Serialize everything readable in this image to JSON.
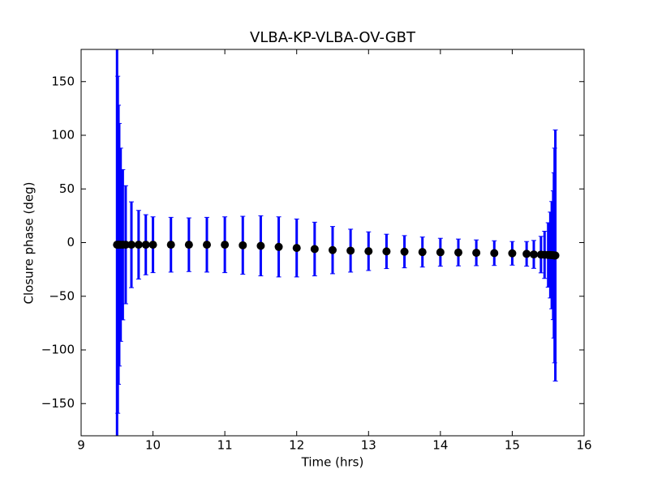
{
  "chart_data": {
    "type": "errorbar",
    "title": "VLBA-KP-VLBA-OV-GBT",
    "xlabel": "Time (hrs)",
    "ylabel": "Closure phase (deg)",
    "x": [
      9.5,
      9.51,
      9.52,
      9.53,
      9.55,
      9.58,
      9.62,
      9.7,
      9.8,
      9.9,
      10.0,
      10.25,
      10.5,
      10.75,
      11.0,
      11.25,
      11.5,
      11.75,
      12.0,
      12.25,
      12.5,
      12.75,
      13.0,
      13.25,
      13.5,
      13.75,
      14.0,
      14.25,
      14.5,
      14.75,
      15.0,
      15.2,
      15.3,
      15.4,
      15.45,
      15.5,
      15.53,
      15.55,
      15.57,
      15.58,
      15.59,
      15.6
    ],
    "values": [
      -2,
      -2,
      -2,
      -2,
      -2,
      -2,
      -2,
      -2,
      -2,
      -2,
      -2,
      -2,
      -2,
      -2,
      -2,
      -2.5,
      -3,
      -4,
      -5,
      -6,
      -7,
      -7.5,
      -8,
      -8.2,
      -8.5,
      -8.8,
      -9,
      -9.2,
      -9.5,
      -9.8,
      -10,
      -10.5,
      -11,
      -11.2,
      -11.4,
      -11.5,
      -11.6,
      -11.7,
      -11.8,
      -11.9,
      -12,
      -12
    ],
    "errors": [
      200,
      157,
      130,
      113,
      90,
      70,
      55,
      40,
      32,
      28,
      26,
      25.5,
      25,
      25.5,
      26,
      27,
      28,
      28,
      27,
      25,
      22,
      20,
      18,
      16,
      15,
      14,
      13,
      12.5,
      12,
      11.5,
      11,
      11.5,
      13,
      17,
      22,
      30,
      40,
      50,
      60,
      77,
      100,
      117
    ],
    "color": "#0000ff",
    "marker_color": "#000000",
    "xlim": [
      9,
      16
    ],
    "ylim": [
      -180,
      180
    ],
    "xticks": [
      9,
      10,
      11,
      12,
      13,
      14,
      15,
      16
    ],
    "yticks": [
      {
        "value": -150,
        "label": "−150"
      },
      {
        "value": -100,
        "label": "−100"
      },
      {
        "value": -50,
        "label": "−50"
      },
      0,
      50,
      100,
      150
    ]
  }
}
